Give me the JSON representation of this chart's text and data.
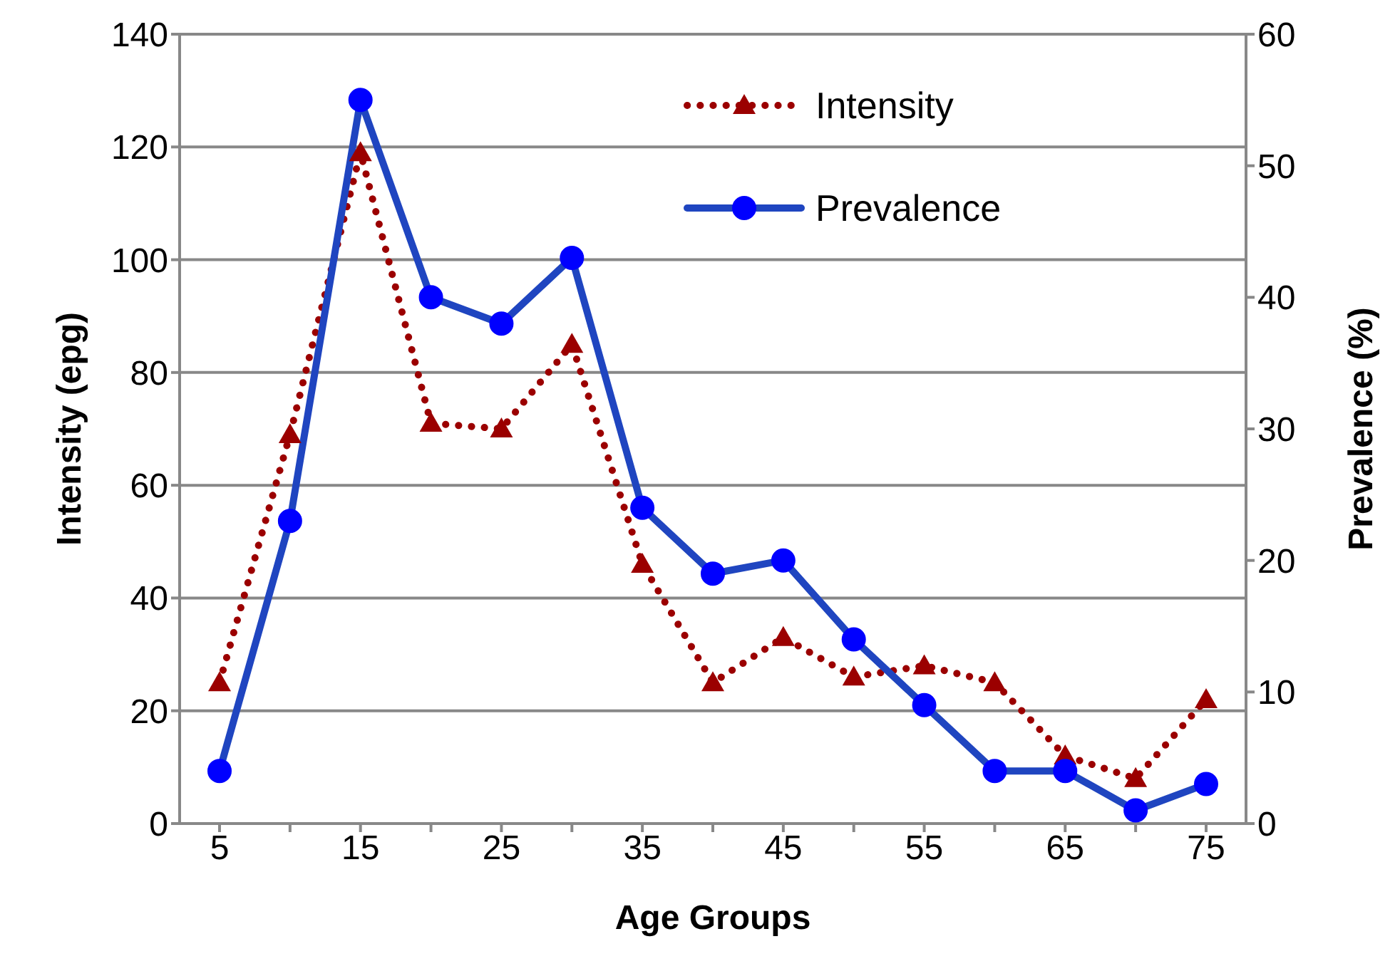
{
  "chart_data": {
    "type": "line",
    "xlabel": "Age Groups",
    "ylabel": "Intensity (epg)",
    "y2label": "Prevalence (%)",
    "categories": [
      "5",
      null,
      "15",
      null,
      "25",
      null,
      "35",
      null,
      "45",
      null,
      "55",
      null,
      "65",
      null,
      "75"
    ],
    "series": [
      {
        "name": "Intensity",
        "color": "#9b0000",
        "marker": "triangle",
        "line_style": "dotted",
        "values": [
          25,
          69,
          119,
          71,
          70,
          85,
          46,
          25,
          33,
          26,
          28,
          25,
          12,
          8,
          22
        ]
      },
      {
        "name": "Prevalence",
        "color": "#1f45c0",
        "marker": "circle",
        "line_style": "solid",
        "axis": "y2",
        "values": [
          4,
          23,
          55,
          40,
          38,
          43,
          24,
          19,
          20,
          14,
          9,
          4,
          4,
          1,
          3
        ]
      }
    ],
    "ylim": [
      0,
      140
    ],
    "yticks": [
      0,
      20,
      40,
      60,
      80,
      100,
      120,
      140
    ],
    "y2lim": [
      0,
      60
    ],
    "y2ticks": [
      0,
      10,
      20,
      30,
      40,
      50,
      60
    ],
    "grid": "y",
    "legend": "top right"
  }
}
